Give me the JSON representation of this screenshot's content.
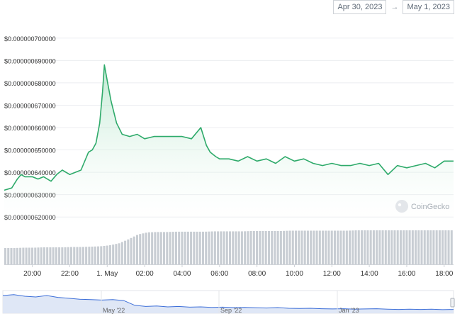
{
  "range": {
    "from": "Apr 30, 2023",
    "separator": "→",
    "to": "May 1, 2023"
  },
  "watermark": {
    "text": "CoinGecko",
    "icon": "gecko-logo-icon"
  },
  "colors": {
    "line": "#2eaa6a",
    "area_top": "#8fd9b0",
    "volume": "#c8cdd3",
    "navigator_line": "#3c6ed8",
    "grid": "#eceef1",
    "axis_text": "#333333"
  },
  "chart_data": {
    "type": "area",
    "title": "",
    "ylabel": "",
    "ylim": [
      6.15e-07,
      7.05e-07
    ],
    "y_ticks": [
      "$0.000000620000",
      "$0.000000630000",
      "$0.000000640000",
      "$0.000000650000",
      "$0.000000660000",
      "$0.000000670000",
      "$0.000000680000",
      "$0.000000690000",
      "$0.000000700000"
    ],
    "y_tick_values": [
      6.2e-07,
      6.3e-07,
      6.4e-07,
      6.5e-07,
      6.6e-07,
      6.7e-07,
      6.8e-07,
      6.9e-07,
      7e-07
    ],
    "x_ticks": [
      "20:00",
      "22:00",
      "1. May",
      "02:00",
      "04:00",
      "06:00",
      "08:00",
      "10:00",
      "12:00",
      "14:00",
      "16:00",
      "18:00"
    ],
    "x_tick_hours": [
      20,
      22,
      24,
      26,
      28,
      30,
      32,
      34,
      36,
      38,
      40,
      42
    ],
    "x_range_hours": [
      18.5,
      42.5
    ],
    "grid": true,
    "legend": "none",
    "series": [
      {
        "x_hours": [
          18.5,
          18.9,
          19.2,
          19.4,
          19.6,
          20.0,
          20.3,
          20.6,
          21.0,
          21.3,
          21.6,
          22.0,
          22.3,
          22.6,
          23.0,
          23.2,
          23.4,
          23.6,
          23.75,
          23.85,
          24.0,
          24.2,
          24.5,
          24.8,
          25.2,
          25.6,
          26.0,
          26.5,
          27.0,
          27.5,
          28.0,
          28.5,
          29.0,
          29.3,
          29.5,
          29.8,
          30.0,
          30.5,
          31.0,
          31.5,
          32.0,
          32.5,
          33.0,
          33.5,
          34.0,
          34.5,
          35.0,
          35.5,
          36.0,
          36.5,
          37.0,
          37.5,
          38.0,
          38.5,
          39.0,
          39.5,
          40.0,
          40.5,
          41.0,
          41.5,
          42.0,
          42.5
        ],
        "values": [
          6.32e-07,
          6.33e-07,
          6.37e-07,
          6.39e-07,
          6.38e-07,
          6.38e-07,
          6.37e-07,
          6.38e-07,
          6.36e-07,
          6.39e-07,
          6.41e-07,
          6.39e-07,
          6.4e-07,
          6.41e-07,
          6.49e-07,
          6.5e-07,
          6.53e-07,
          6.62e-07,
          6.76e-07,
          6.88e-07,
          6.81e-07,
          6.72e-07,
          6.62e-07,
          6.57e-07,
          6.56e-07,
          6.57e-07,
          6.55e-07,
          6.56e-07,
          6.56e-07,
          6.56e-07,
          6.56e-07,
          6.55e-07,
          6.6e-07,
          6.52e-07,
          6.49e-07,
          6.47e-07,
          6.46e-07,
          6.46e-07,
          6.45e-07,
          6.47e-07,
          6.45e-07,
          6.46e-07,
          6.44e-07,
          6.47e-07,
          6.45e-07,
          6.46e-07,
          6.44e-07,
          6.43e-07,
          6.44e-07,
          6.43e-07,
          6.43e-07,
          6.44e-07,
          6.43e-07,
          6.44e-07,
          6.39e-07,
          6.43e-07,
          6.42e-07,
          6.43e-07,
          6.44e-07,
          6.42e-07,
          6.45e-07,
          6.45e-07
        ]
      }
    ],
    "volume": {
      "x_hours_start": 18.5,
      "x_hours_end": 42.5,
      "levels": [
        0.48,
        0.48,
        0.49,
        0.49,
        0.5,
        0.5,
        0.5,
        0.51,
        0.51,
        0.52,
        0.53,
        0.56,
        0.62,
        0.74,
        0.88,
        0.94,
        0.95,
        0.95,
        0.96,
        0.96,
        0.96,
        0.96,
        0.97,
        0.97,
        0.97,
        0.97,
        0.98,
        0.98,
        0.98,
        0.98,
        0.99,
        0.99,
        0.99,
        0.99,
        0.99,
        0.99,
        0.99,
        1.0,
        1.0,
        1.0,
        1.0,
        1.0,
        1.0,
        1.0,
        1.0,
        1.0,
        1.0,
        1.0
      ]
    },
    "navigator": {
      "x_ticks": [
        "May '22",
        "Sep '22",
        "Jan '23"
      ],
      "levels": [
        0.78,
        0.82,
        0.75,
        0.72,
        0.78,
        0.7,
        0.66,
        0.62,
        0.6,
        0.58,
        0.6,
        0.56,
        0.35,
        0.3,
        0.32,
        0.28,
        0.3,
        0.27,
        0.28,
        0.26,
        0.27,
        0.25,
        0.26,
        0.24,
        0.23,
        0.25,
        0.22,
        0.21,
        0.22,
        0.2,
        0.19,
        0.2,
        0.18,
        0.19,
        0.2,
        0.18,
        0.17,
        0.18,
        0.17,
        0.18,
        0.16,
        0.17
      ]
    }
  }
}
